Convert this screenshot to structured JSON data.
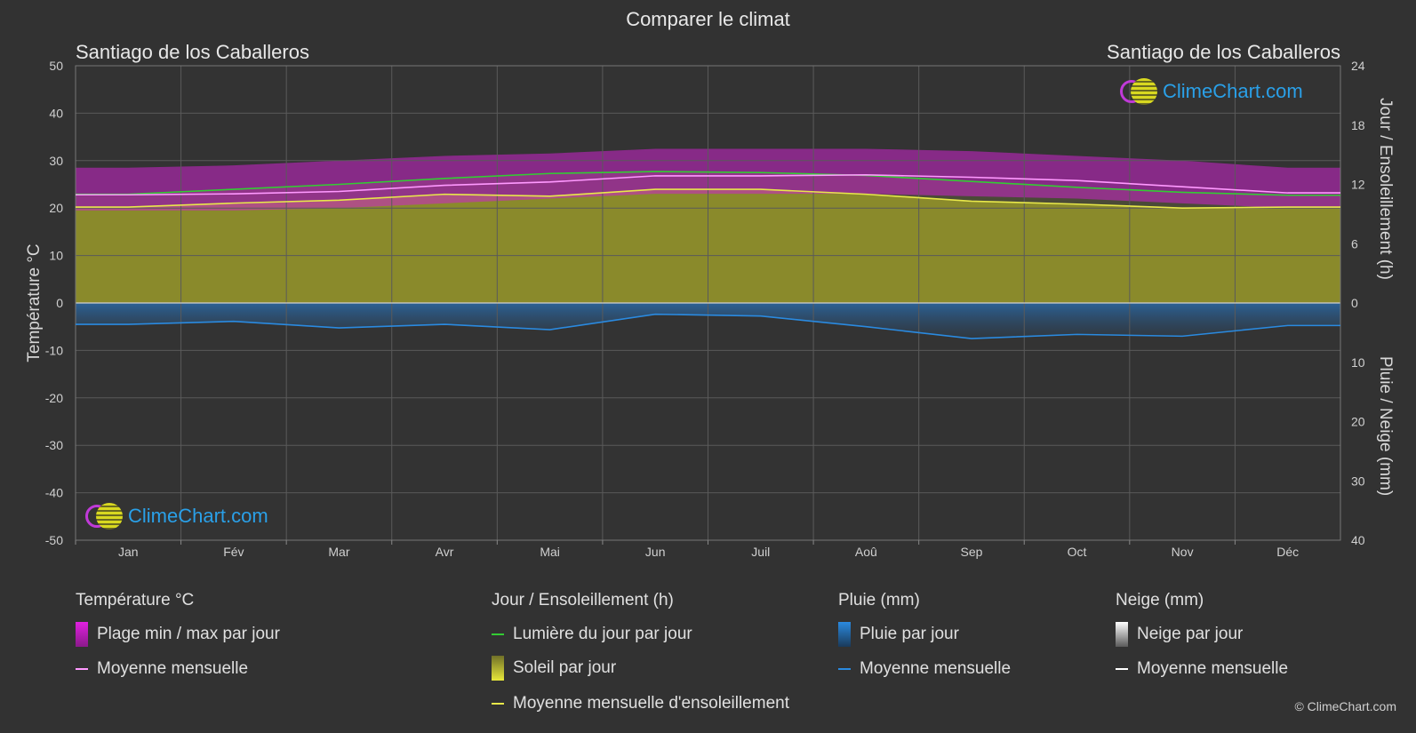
{
  "title": "Comparer le climat",
  "location_left": "Santiago de los Caballeros",
  "location_right": "Santiago de los Caballeros",
  "logo_text": "ClimeChart.com",
  "copyright": "© ClimeChart.com",
  "colors": {
    "background": "#323232",
    "temp_range": "#cc22cc",
    "temp_mean": "#ff99ff",
    "daylight": "#33cc33",
    "sunshine_fill": "#9a9a2a",
    "sunshine_mean": "#e8e84a",
    "rain": "#2a7ac8",
    "rain_mean": "#2a8ae0",
    "snow_mean": "#ffffff"
  },
  "legend": {
    "groups": [
      {
        "title": "Température °C",
        "items": [
          {
            "icon": "temperature-range-swatch",
            "label": "Plage min / max par jour"
          },
          {
            "icon": "temperature-mean-line",
            "label": "Moyenne mensuelle"
          }
        ]
      },
      {
        "title": "Jour / Ensoleillement (h)",
        "items": [
          {
            "icon": "daylight-line",
            "label": "Lumière du jour par jour"
          },
          {
            "icon": "sunshine-swatch",
            "label": "Soleil par jour"
          },
          {
            "icon": "sunshine-mean-line",
            "label": "Moyenne mensuelle d'ensoleillement"
          }
        ]
      },
      {
        "title": "Pluie (mm)",
        "items": [
          {
            "icon": "rain-swatch",
            "label": "Pluie par jour"
          },
          {
            "icon": "rain-mean-line",
            "label": "Moyenne mensuelle"
          }
        ]
      },
      {
        "title": "Neige (mm)",
        "items": [
          {
            "icon": "snow-swatch",
            "label": "Neige par jour"
          },
          {
            "icon": "snow-mean-line",
            "label": "Moyenne mensuelle"
          }
        ]
      }
    ]
  },
  "chart_data": {
    "type": "line",
    "categories": [
      "Jan",
      "Fév",
      "Mar",
      "Avr",
      "Mai",
      "Jun",
      "Juil",
      "Aoû",
      "Sep",
      "Oct",
      "Nov",
      "Déc"
    ],
    "y_left": {
      "label": "Température °C",
      "range": [
        -50,
        50
      ],
      "ticks": [
        50,
        40,
        30,
        20,
        10,
        0,
        -10,
        -20,
        -30,
        -40,
        -50
      ]
    },
    "y_right_top": {
      "label": "Jour / Ensoleillement (h)",
      "range": [
        0,
        24
      ],
      "ticks": [
        24,
        18,
        12,
        6,
        0
      ]
    },
    "y_right_bottom": {
      "label": "Pluie / Neige (mm)",
      "range": [
        0,
        40
      ],
      "ticks": [
        0,
        10,
        20,
        30,
        40
      ]
    },
    "series": [
      {
        "name": "Plage min / max par jour",
        "kind": "band",
        "axis": "temperature",
        "min": [
          19.5,
          19.5,
          20.0,
          21.0,
          22.0,
          23.0,
          23.0,
          23.0,
          22.5,
          22.0,
          21.0,
          20.0
        ],
        "max": [
          28.5,
          29.0,
          30.0,
          31.0,
          31.5,
          32.5,
          32.5,
          32.5,
          32.0,
          31.0,
          30.0,
          28.5
        ]
      },
      {
        "name": "Moyenne mensuelle",
        "kind": "line",
        "axis": "temperature",
        "values": [
          22.8,
          23.0,
          23.5,
          24.8,
          25.5,
          26.8,
          26.8,
          27.0,
          26.5,
          25.8,
          24.5,
          23.2
        ]
      },
      {
        "name": "Lumière du jour par jour",
        "kind": "line",
        "axis": "hours",
        "values": [
          11.0,
          11.5,
          12.0,
          12.6,
          13.1,
          13.3,
          13.2,
          12.9,
          12.3,
          11.7,
          11.2,
          10.9
        ]
      },
      {
        "name": "Moyenne mensuelle d'ensoleillement",
        "kind": "line",
        "axis": "hours",
        "values": [
          9.7,
          10.1,
          10.4,
          11.0,
          10.8,
          11.5,
          11.5,
          11.0,
          10.3,
          10.0,
          9.6,
          9.7
        ]
      },
      {
        "name": "Moyenne mensuelle (pluie)",
        "kind": "line",
        "axis": "precip",
        "values": [
          3.6,
          3.1,
          4.2,
          3.6,
          4.5,
          1.9,
          2.2,
          4.0,
          6.0,
          5.3,
          5.6,
          3.8
        ]
      }
    ]
  }
}
